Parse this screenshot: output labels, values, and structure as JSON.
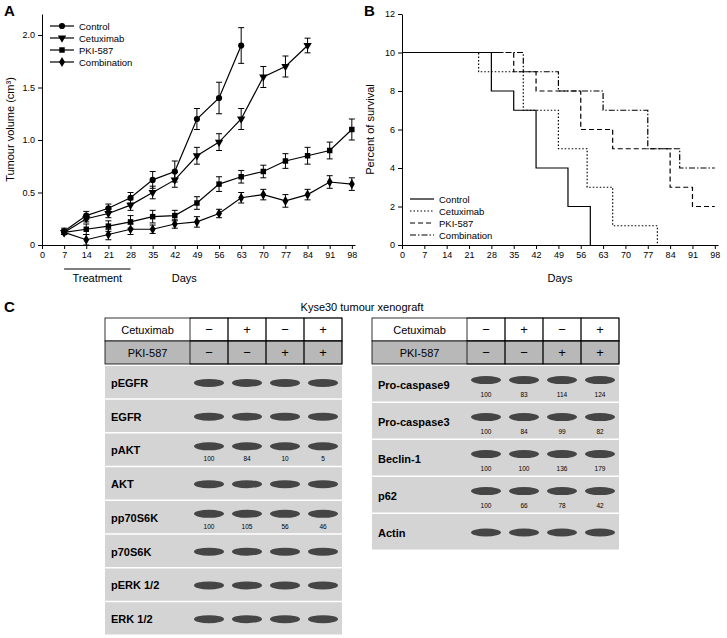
{
  "chart_data": [
    {
      "type": "line",
      "label": "A",
      "ylabel": "Tumour volume (cm³)",
      "xlabel": "Days",
      "x": [
        7,
        14,
        21,
        28,
        35,
        42,
        49,
        56,
        63,
        70,
        77,
        84,
        91,
        98
      ],
      "xlim": [
        0,
        99
      ],
      "xticks": [
        0,
        7,
        14,
        21,
        28,
        35,
        42,
        49,
        56,
        63,
        70,
        77,
        84,
        91,
        98
      ],
      "ylim": [
        0,
        2.2
      ],
      "yticks": [
        0,
        0.5,
        {
          "value": 1,
          "label": "1.0"
        },
        1.5,
        {
          "value": 2,
          "label": "2.0"
        }
      ],
      "grid": false,
      "legend": "upper left",
      "annotations": [
        {
          "text": "Treatment",
          "x_start": 7,
          "x_end": 28
        }
      ],
      "series": [
        {
          "name": "Control",
          "color": "#000000",
          "marker": "circle",
          "values": [
            0.13,
            0.28,
            0.35,
            0.45,
            0.62,
            0.7,
            1.2,
            1.4,
            1.9,
            null,
            null,
            null,
            null,
            null
          ],
          "errors": [
            0.03,
            0.04,
            0.04,
            0.05,
            0.08,
            0.1,
            0.1,
            0.15,
            0.17,
            null,
            null,
            null,
            null,
            null
          ]
        },
        {
          "name": "Cetuximab",
          "color": "#000000",
          "marker": "triangle-down",
          "values": [
            0.12,
            0.25,
            0.3,
            0.38,
            0.5,
            0.62,
            0.85,
            0.98,
            1.2,
            1.6,
            1.7,
            1.9,
            null,
            null
          ],
          "errors": [
            0.02,
            0.03,
            0.04,
            0.05,
            0.06,
            0.07,
            0.08,
            0.08,
            0.1,
            0.1,
            0.1,
            0.07,
            null,
            null
          ]
        },
        {
          "name": "PKI-587",
          "color": "#000000",
          "marker": "square",
          "values": [
            0.12,
            0.15,
            0.18,
            0.22,
            0.27,
            0.28,
            0.4,
            0.58,
            0.65,
            0.7,
            0.8,
            0.85,
            0.9,
            1.1
          ],
          "errors": [
            0.02,
            0.05,
            0.05,
            0.06,
            0.06,
            0.05,
            0.06,
            0.07,
            0.06,
            0.06,
            0.07,
            0.08,
            0.08,
            0.1
          ]
        },
        {
          "name": "Combination",
          "color": "#000000",
          "marker": "diamond",
          "values": [
            0.12,
            0.05,
            0.1,
            0.15,
            0.15,
            0.2,
            0.22,
            0.3,
            0.45,
            0.48,
            0.42,
            0.48,
            0.6,
            0.58
          ],
          "errors": [
            0.02,
            0.05,
            0.05,
            0.05,
            0.04,
            0.04,
            0.05,
            0.04,
            0.05,
            0.05,
            0.06,
            0.05,
            0.06,
            0.06
          ]
        }
      ]
    },
    {
      "type": "step",
      "label": "B",
      "ylabel": "Percent of survival",
      "xlabel": "Days",
      "xlim": [
        0,
        99
      ],
      "xticks": [
        0,
        7,
        14,
        21,
        28,
        35,
        42,
        49,
        56,
        63,
        70,
        77,
        84,
        91,
        98
      ],
      "ylim": [
        0,
        12
      ],
      "yticks": [
        0,
        2,
        4,
        6,
        8,
        10,
        12
      ],
      "grid": false,
      "legend": "lower left",
      "series": [
        {
          "name": "Control",
          "color": "#000000",
          "line_style": "solid",
          "x": [
            0,
            28,
            35,
            42,
            52,
            59
          ],
          "values": [
            10,
            8,
            7,
            4,
            2,
            0
          ]
        },
        {
          "name": "Cetuximab",
          "color": "#000000",
          "line_style": "dotted",
          "x": [
            0,
            24,
            38,
            49,
            58,
            66,
            80
          ],
          "values": [
            10,
            9,
            7,
            5,
            3,
            1,
            0
          ]
        },
        {
          "name": "PKI-587",
          "color": "#000000",
          "line_style": "dashed",
          "x": [
            0,
            35,
            42,
            56,
            66,
            84,
            91,
            98
          ],
          "values": [
            10,
            9,
            8,
            6,
            5,
            3,
            2,
            2
          ]
        },
        {
          "name": "Combination",
          "color": "#000000",
          "line_style": "dashdot",
          "x": [
            0,
            38,
            49,
            63,
            77,
            87,
            98
          ],
          "values": [
            10,
            9,
            8,
            7,
            5,
            4,
            4
          ]
        }
      ]
    }
  ],
  "blots": {
    "label": "C",
    "title": "Kyse30 tumour xenograft",
    "treatments": [
      {
        "label": "Cetuximab",
        "signs": [
          "−",
          "+",
          "−",
          "+"
        ]
      },
      {
        "label": "PKI-587",
        "signs": [
          "−",
          "−",
          "+",
          "+"
        ]
      }
    ],
    "panels": [
      {
        "rows": [
          {
            "label": "pEGFR"
          },
          {
            "label": "EGFR"
          },
          {
            "label": "pAKT",
            "quant": [
              100,
              84,
              10,
              5
            ]
          },
          {
            "label": "AKT"
          },
          {
            "label": "pp70S6K",
            "quant": [
              100,
              105,
              56,
              46
            ]
          },
          {
            "label": "p70S6K"
          },
          {
            "label": "pERK 1/2"
          },
          {
            "label": "ERK 1/2"
          }
        ]
      },
      {
        "rows": [
          {
            "label": "Pro-caspase9",
            "quant": [
              100,
              83,
              114,
              124
            ]
          },
          {
            "label": "Pro-caspase3",
            "quant": [
              100,
              84,
              99,
              82
            ]
          },
          {
            "label": "Beclin-1",
            "quant": [
              100,
              100,
              136,
              179
            ]
          },
          {
            "label": "p62",
            "quant": [
              100,
              66,
              78,
              42
            ]
          },
          {
            "label": "Actin"
          }
        ]
      }
    ]
  }
}
